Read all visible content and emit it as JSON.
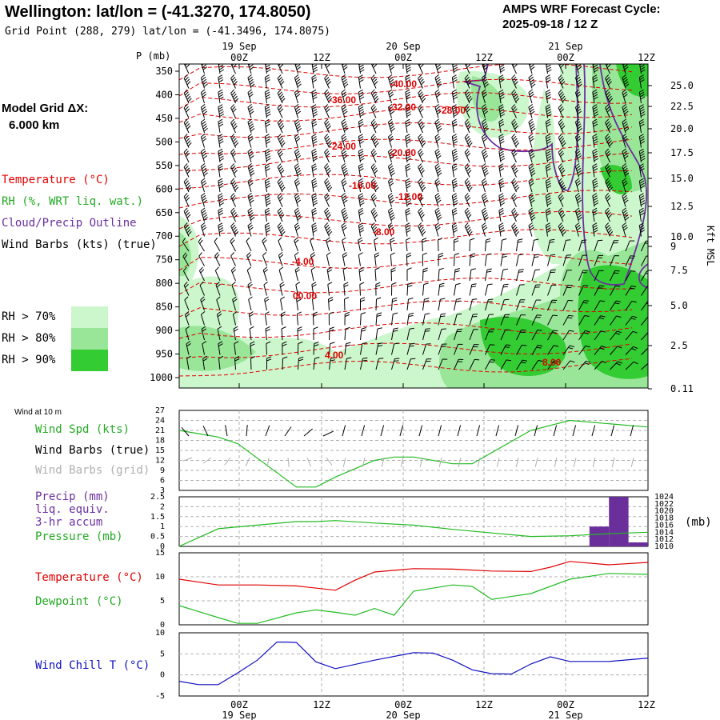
{
  "header": {
    "title": "Wellington:  lat/lon = (-41.3270, 174.8050)",
    "grid_point": "Grid Point (288, 279) lat/lon = (-41.3496, 174.8075)",
    "cycle_label": "AMPS WRF Forecast Cycle:",
    "cycle_value": "2025-09-18 / 12  Z"
  },
  "left_legend": {
    "model_grid_label": "Model Grid ΔX:",
    "model_grid_value": "6.000 km",
    "temperature": "Temperature (°C)",
    "rh": "RH (%, WRT liq. wat.)",
    "cloud": "Cloud/Precip Outline",
    "wind_barbs": "Wind Barbs (kts) (true)",
    "rh70": "RH > 70%",
    "rh80": "RH > 80%",
    "rh90": "RH > 90%"
  },
  "colors": {
    "rh70": "#ccf7cc",
    "rh80": "#99e699",
    "rh90": "#33cc33",
    "temperature": "#e00000",
    "cloud": "#6a2fa0",
    "green": "#22bb22",
    "wind_chill": "#1010c0",
    "precip": "#6a2f9a"
  },
  "time_axis": {
    "top_dates": [
      "19 Sep",
      "20 Sep",
      "21 Sep"
    ],
    "top_hours": [
      "00Z",
      "12Z",
      "00Z",
      "12Z",
      "00Z",
      "12Z"
    ],
    "bottom_hours": [
      "00Z",
      "12Z",
      "00Z",
      "12Z",
      "00Z",
      "12Z"
    ],
    "bottom_dates": [
      "19 Sep",
      "20 Sep",
      "21 Sep"
    ]
  },
  "panel_labels": {
    "wind10": "Wind at 10 m",
    "wind_spd": "Wind Spd (kts)",
    "wind_barbs_true": "Wind Barbs (true)",
    "wind_barbs_grid": "Wind Barbs (grid)",
    "precip1": "Precip (mm)",
    "precip2": "liq. equiv.",
    "precip3": "3-hr accum",
    "pressure": "Pressure (mb)",
    "pressure_unit": "(mb)",
    "temperature": "Temperature (°C)",
    "dewpoint": "Dewpoint (°C)",
    "wind_chill": "Wind Chill T (°C)"
  },
  "chart_data": [
    {
      "type": "line",
      "name": "cross-section",
      "y_axis_label": "P (mb)",
      "pressure_levels": [
        350,
        400,
        450,
        500,
        550,
        600,
        650,
        700,
        750,
        800,
        850,
        900,
        950,
        1000
      ],
      "right_axis_label": "Kft MSL",
      "right_axis_ticks": [
        "25.0",
        "22.5",
        "20.0",
        "17.5",
        "15.0",
        "12.5",
        "10.0",
        "9",
        "7.5",
        "5.0",
        "2.5",
        "0.11"
      ],
      "temperature_labels": [
        "-40.00",
        "-36.00",
        "-32.00",
        "-28.00",
        "-24.00",
        "-20.00",
        "-16.00",
        "-12.00",
        "-8.00",
        "-4.00",
        "00.00",
        "4.00",
        "8.00"
      ]
    },
    {
      "type": "line",
      "name": "wind-speed-10m",
      "ylim": [
        3,
        27
      ],
      "y_ticks": [
        3,
        6,
        9,
        12,
        15,
        18,
        21,
        24,
        27
      ],
      "series": [
        {
          "name": "Wind Spd (kts)",
          "x": [
            -6,
            0,
            3,
            12,
            15,
            18,
            24,
            27,
            30,
            36,
            39,
            48,
            54,
            60,
            66
          ],
          "values": [
            21,
            19,
            17,
            4,
            4,
            7,
            12,
            13,
            13,
            11,
            11,
            21,
            24,
            23,
            22
          ]
        }
      ]
    },
    {
      "type": "bar",
      "name": "precip-and-pressure",
      "precip_ylim": [
        0,
        2.5
      ],
      "precip_ticks": [
        "0.0",
        "0.5",
        "1.0",
        "1.5",
        "2.0",
        "2.5"
      ],
      "pressure_ticks": [
        "1024",
        "1022",
        "1020",
        "1018",
        "1016",
        "1014",
        "1012",
        "1010"
      ],
      "precip_bars": [
        {
          "x0": 57,
          "x1": 60,
          "value": 1.0
        },
        {
          "x0": 60,
          "x1": 63,
          "value": 2.5
        },
        {
          "x0": 63,
          "x1": 66,
          "value": 0.2
        }
      ],
      "series": [
        {
          "name": "Pressure (mb)",
          "x": [
            -6,
            0,
            6,
            12,
            15,
            18,
            24,
            30,
            36,
            42,
            48,
            54,
            60,
            66
          ],
          "values": [
            1010,
            1015,
            1016,
            1017,
            1017,
            1017.3,
            1016.6,
            1016,
            1014.8,
            1013.8,
            1012.8,
            1013,
            1013.6,
            1014
          ]
        }
      ]
    },
    {
      "type": "line",
      "name": "temperature-dewpoint",
      "ylim": [
        0,
        15
      ],
      "y_ticks": [
        0,
        5,
        10,
        15
      ],
      "series": [
        {
          "name": "Temperature (°C)",
          "x": [
            -6,
            0,
            6,
            12,
            18,
            21,
            24,
            30,
            36,
            42,
            48,
            51,
            54,
            60,
            66
          ],
          "values": [
            9.5,
            8.3,
            8.3,
            8.1,
            7.2,
            9.3,
            11,
            11.7,
            11.6,
            11.2,
            11.1,
            12,
            13.2,
            12.5,
            13
          ]
        },
        {
          "name": "Dewpoint (°C)",
          "x": [
            -6,
            0,
            3,
            6,
            12,
            15,
            18,
            21,
            24,
            27,
            30,
            36,
            39,
            42,
            48,
            54,
            60,
            66
          ],
          "values": [
            4,
            1.5,
            0.3,
            0.3,
            2.5,
            3.1,
            2.6,
            2,
            3.4,
            2,
            7,
            8.3,
            8,
            5.3,
            6.5,
            9.5,
            10.7,
            10.5
          ]
        }
      ]
    },
    {
      "type": "line",
      "name": "wind-chill",
      "ylim": [
        -5,
        10
      ],
      "y_ticks": [
        -5,
        0,
        5,
        10
      ],
      "series": [
        {
          "name": "Wind Chill T (°C)",
          "x": [
            -6,
            -3,
            0,
            3,
            6,
            9,
            10.5,
            12,
            15,
            18,
            24,
            30,
            33,
            36,
            39,
            42,
            45,
            48,
            51,
            54,
            60,
            66
          ],
          "values": [
            -1.5,
            -2.3,
            -2.3,
            0.5,
            3.5,
            7.8,
            7.8,
            7.7,
            3.1,
            1.5,
            3.5,
            5.3,
            5.2,
            3.5,
            1.2,
            0.3,
            0.2,
            2.6,
            4.3,
            3.2,
            3.2,
            4
          ]
        }
      ]
    }
  ]
}
